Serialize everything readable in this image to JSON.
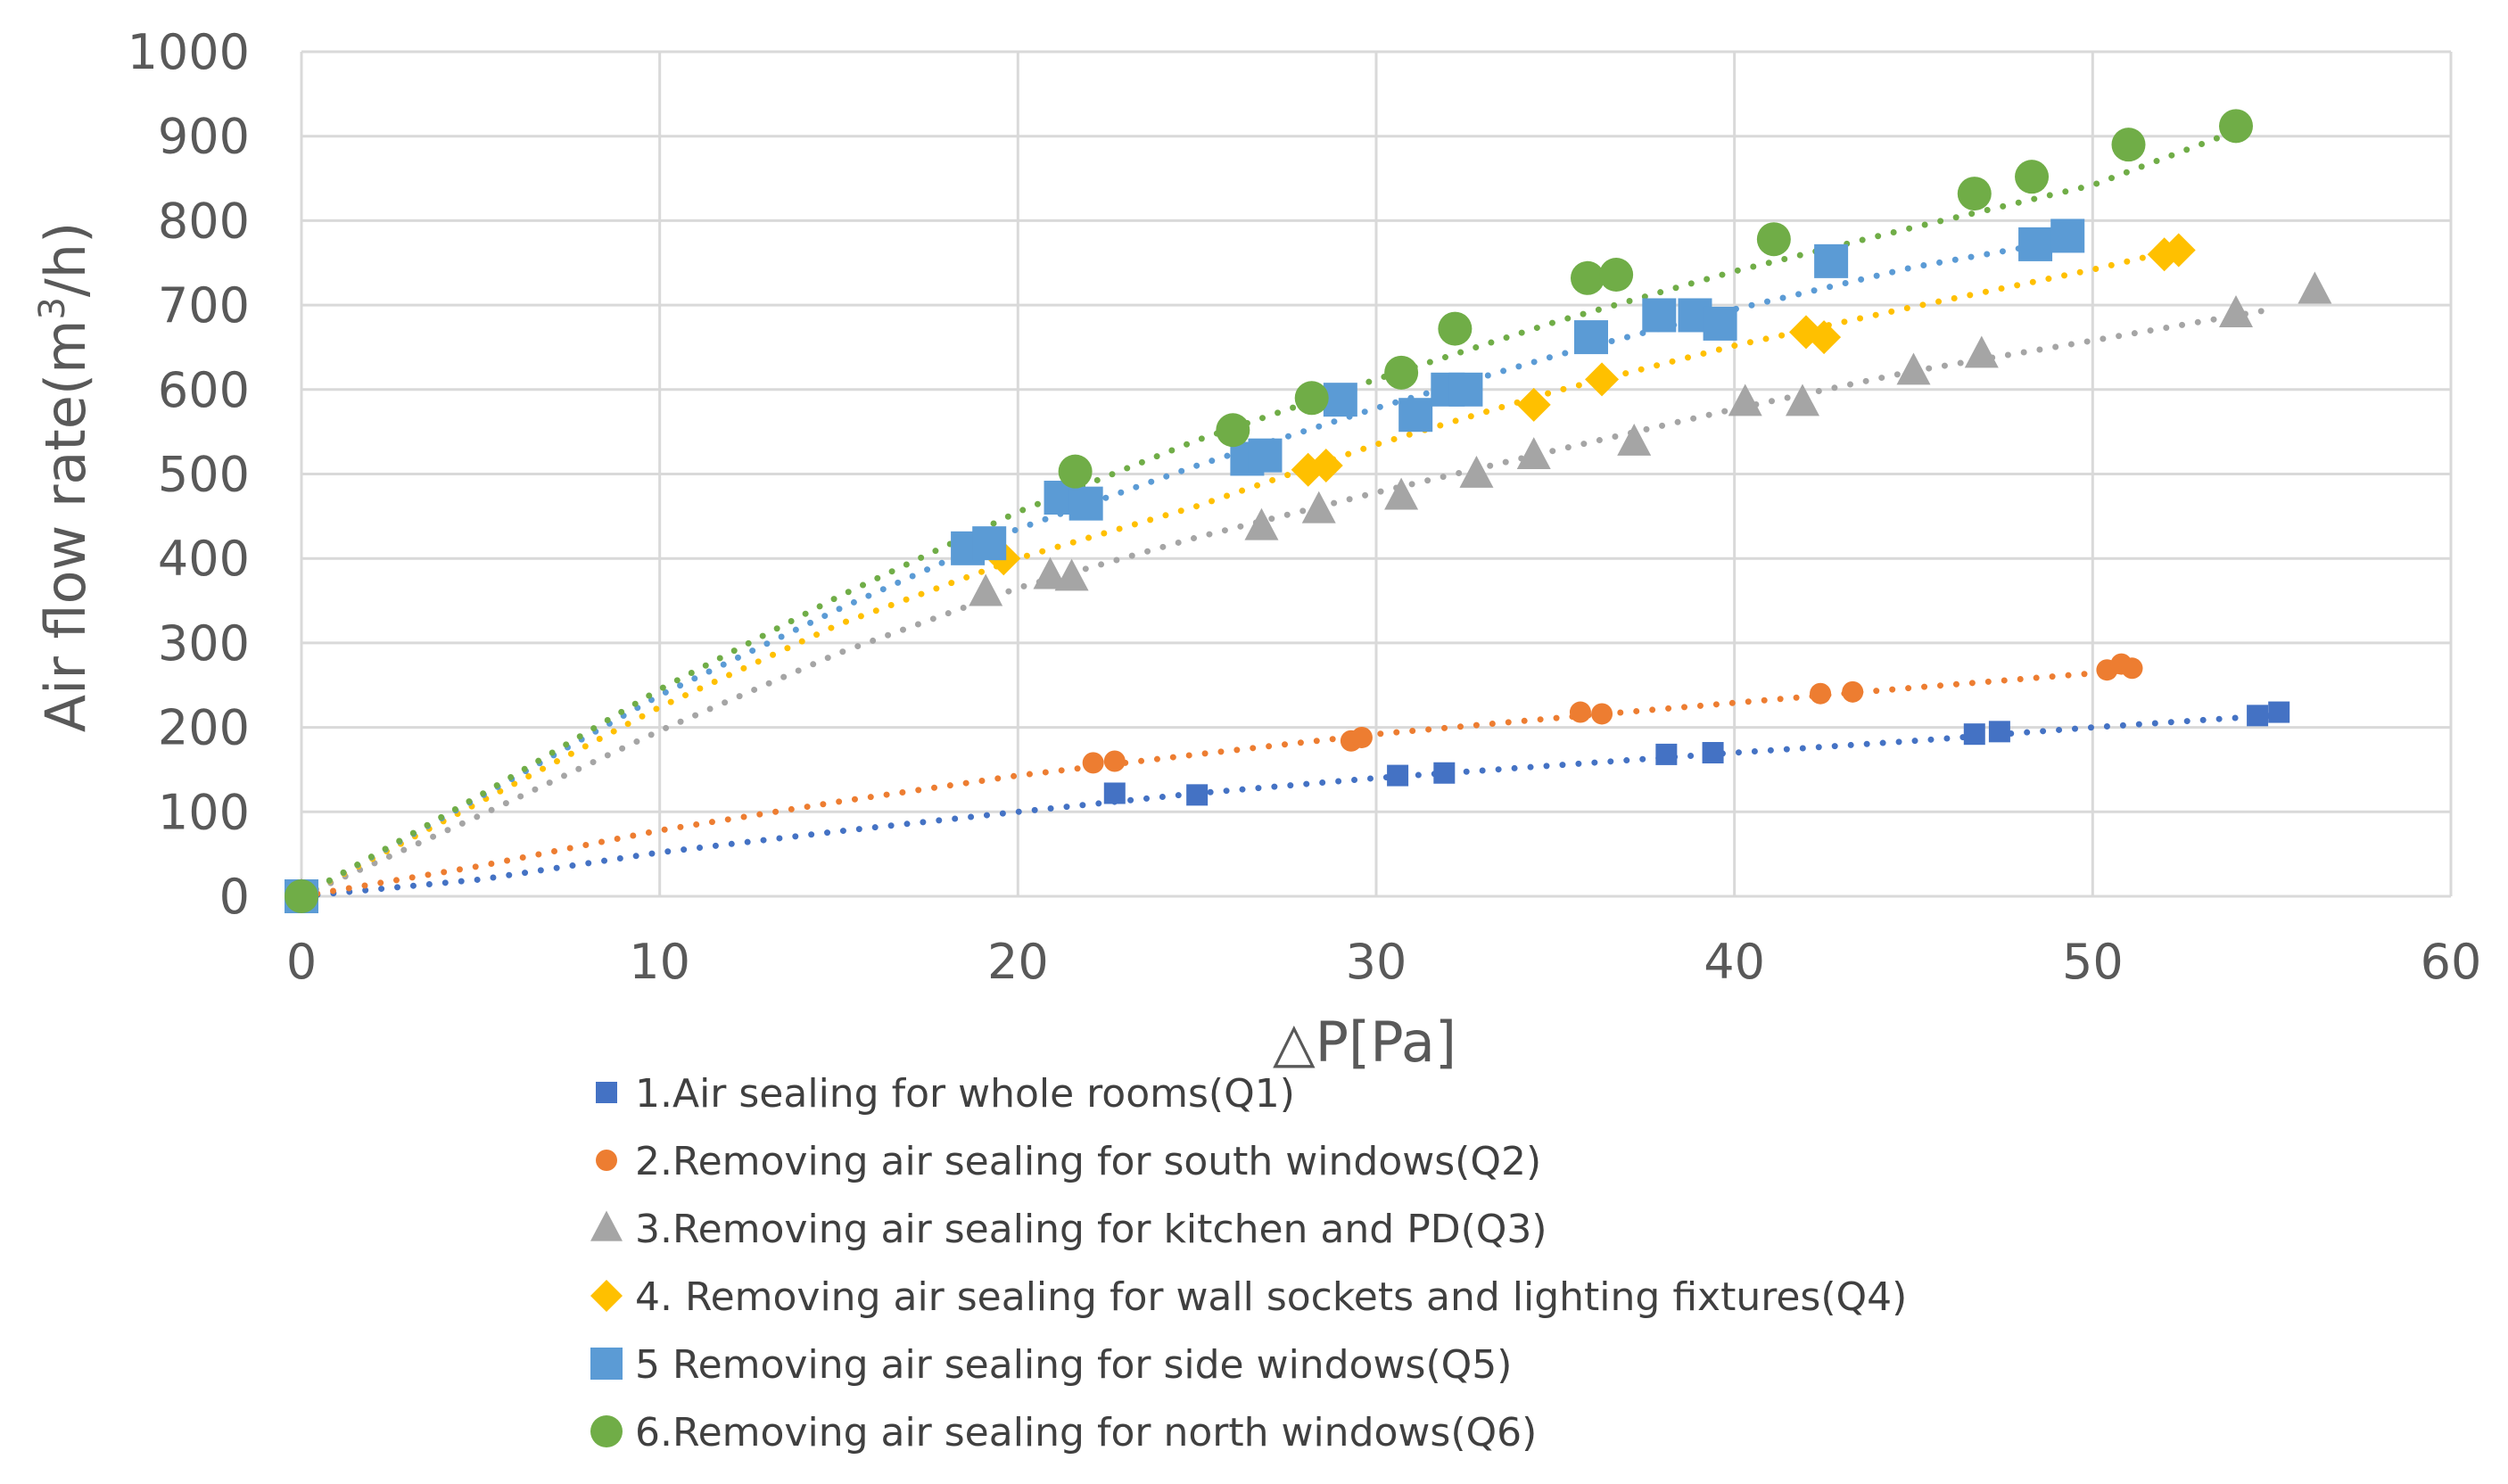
{
  "chart_data": {
    "type": "scatter",
    "title": "",
    "xlabel": "△P[Pa]",
    "ylabel_main": "Air flow rate(m",
    "ylabel_sup": "3",
    "ylabel_end": "/h)",
    "xlim": [
      0,
      60
    ],
    "ylim": [
      0,
      1000
    ],
    "x_ticks": [
      0,
      10,
      20,
      30,
      40,
      50,
      60
    ],
    "y_ticks": [
      0,
      100,
      200,
      300,
      400,
      500,
      600,
      700,
      800,
      900,
      1000
    ],
    "grid": true,
    "legend_position": "bottom",
    "series": [
      {
        "name": "1.Air sealing for whole rooms(Q1)",
        "color": "#4472C4",
        "marker": "square",
        "marker_scale": "small",
        "points": [
          [
            0,
            0
          ],
          [
            22.7,
            122
          ],
          [
            25,
            120
          ],
          [
            30.6,
            143
          ],
          [
            31.9,
            146
          ],
          [
            38.1,
            168
          ],
          [
            39.4,
            170
          ],
          [
            46.7,
            192
          ],
          [
            47.4,
            195
          ],
          [
            54.6,
            214
          ],
          [
            55.2,
            218
          ]
        ],
        "trend": [
          [
            0,
            0
          ],
          [
            5,
            20
          ],
          [
            10,
            52
          ],
          [
            15,
            77
          ],
          [
            20,
            100
          ],
          [
            25,
            122
          ],
          [
            30,
            140
          ],
          [
            35,
            155
          ],
          [
            40,
            170
          ],
          [
            45,
            184
          ],
          [
            50,
            200
          ],
          [
            55,
            214
          ]
        ]
      },
      {
        "name": "2.Removing air sealing for south windows(Q2)",
        "color": "#ED7D31",
        "marker": "circle",
        "marker_scale": "small",
        "points": [
          [
            0,
            0
          ],
          [
            22.1,
            158
          ],
          [
            22.7,
            160
          ],
          [
            29.3,
            184
          ],
          [
            29.6,
            188
          ],
          [
            35.7,
            218
          ],
          [
            36.3,
            216
          ],
          [
            42.4,
            240
          ],
          [
            43.3,
            242
          ],
          [
            50.4,
            268
          ],
          [
            50.8,
            275
          ],
          [
            51.1,
            270
          ]
        ],
        "trend": [
          [
            0,
            0
          ],
          [
            5,
            36
          ],
          [
            10,
            78
          ],
          [
            15,
            112
          ],
          [
            20,
            143
          ],
          [
            25,
            168
          ],
          [
            30,
            192
          ],
          [
            35,
            211
          ],
          [
            40,
            229
          ],
          [
            45,
            247
          ],
          [
            50,
            264
          ],
          [
            51,
            268
          ]
        ]
      },
      {
        "name": "3.Removing air sealing for kitchen and PD(Q3)",
        "color": "#A5A5A5",
        "marker": "triangle",
        "marker_scale": "large",
        "points": [
          [
            0,
            0
          ],
          [
            19.1,
            360
          ],
          [
            20.9,
            380
          ],
          [
            21.5,
            378
          ],
          [
            26.8,
            438
          ],
          [
            28.4,
            458
          ],
          [
            30.7,
            474
          ],
          [
            32.8,
            500
          ],
          [
            34.4,
            522
          ],
          [
            37.2,
            538
          ],
          [
            40.3,
            585
          ],
          [
            41.9,
            585
          ],
          [
            45,
            622
          ],
          [
            46.9,
            642
          ],
          [
            54,
            690
          ],
          [
            56.2,
            718
          ]
        ],
        "trend": [
          [
            0,
            0
          ],
          [
            5,
            96
          ],
          [
            10,
            196
          ],
          [
            15,
            288
          ],
          [
            20,
            365
          ],
          [
            25,
            425
          ],
          [
            30,
            478
          ],
          [
            35,
            528
          ],
          [
            40,
            577
          ],
          [
            45,
            622
          ],
          [
            50,
            658
          ],
          [
            55,
            695
          ]
        ]
      },
      {
        "name": "4. Removing air sealing for wall sockets and lighting fixtures(Q4)",
        "color": "#FFC000",
        "marker": "diamond",
        "marker_scale": "large",
        "points": [
          [
            0,
            0
          ],
          [
            19.6,
            400
          ],
          [
            28.1,
            505
          ],
          [
            28.6,
            510
          ],
          [
            34.4,
            582
          ],
          [
            36.3,
            612
          ],
          [
            42,
            668
          ],
          [
            42.5,
            662
          ],
          [
            52,
            760
          ],
          [
            52.4,
            765
          ]
        ],
        "trend": [
          [
            0,
            0
          ],
          [
            5,
            112
          ],
          [
            10,
            224
          ],
          [
            15,
            322
          ],
          [
            20,
            400
          ],
          [
            25,
            462
          ],
          [
            30,
            535
          ],
          [
            35,
            598
          ],
          [
            40,
            652
          ],
          [
            45,
            698
          ],
          [
            50,
            742
          ],
          [
            52,
            762
          ]
        ]
      },
      {
        "name": "5 Removing air sealing for side windows(Q5)",
        "color": "#5B9BD5",
        "marker": "square",
        "marker_scale": "large",
        "points": [
          [
            0,
            0
          ],
          [
            18.6,
            412
          ],
          [
            19.2,
            418
          ],
          [
            21.2,
            472
          ],
          [
            21.9,
            465
          ],
          [
            26.4,
            518
          ],
          [
            26.9,
            522
          ],
          [
            29,
            588
          ],
          [
            31.1,
            570
          ],
          [
            32,
            600
          ],
          [
            32.5,
            600
          ],
          [
            36,
            662
          ],
          [
            37.9,
            688
          ],
          [
            38.9,
            688
          ],
          [
            39.6,
            678
          ],
          [
            42.7,
            752
          ],
          [
            48.4,
            772
          ],
          [
            49.3,
            782
          ]
        ],
        "trend": [
          [
            0,
            0
          ],
          [
            5,
            118
          ],
          [
            10,
            238
          ],
          [
            15,
            340
          ],
          [
            20,
            435
          ],
          [
            25,
            510
          ],
          [
            30,
            578
          ],
          [
            35,
            640
          ],
          [
            40,
            695
          ],
          [
            45,
            745
          ],
          [
            49,
            775
          ]
        ]
      },
      {
        "name": "6.Removing air sealing for north windows(Q6)",
        "color": "#70AD47",
        "marker": "circle",
        "marker_scale": "large",
        "points": [
          [
            0,
            0
          ],
          [
            21.6,
            503
          ],
          [
            26,
            552
          ],
          [
            28.2,
            590
          ],
          [
            30.7,
            620
          ],
          [
            32.2,
            672
          ],
          [
            35.9,
            732
          ],
          [
            36.7,
            736
          ],
          [
            41.1,
            778
          ],
          [
            46.7,
            832
          ],
          [
            48.3,
            852
          ],
          [
            51,
            890
          ],
          [
            54,
            912
          ]
        ],
        "trend": [
          [
            0,
            0
          ],
          [
            5,
            120
          ],
          [
            10,
            245
          ],
          [
            15,
            355
          ],
          [
            20,
            455
          ],
          [
            25,
            540
          ],
          [
            30,
            612
          ],
          [
            35,
            680
          ],
          [
            40,
            740
          ],
          [
            45,
            792
          ],
          [
            50,
            842
          ],
          [
            54,
            906
          ]
        ]
      }
    ]
  }
}
